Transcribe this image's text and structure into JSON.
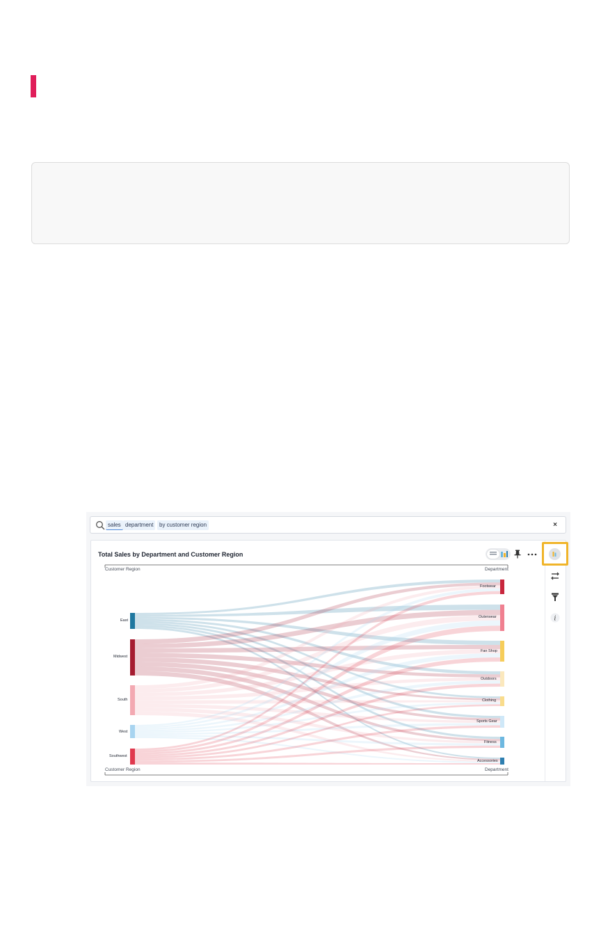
{
  "search": {
    "tokens": [
      "sales",
      "department",
      "by customer region"
    ],
    "clear_label": "×"
  },
  "chart_title": "Total Sales by Department and Customer Region",
  "colors": {
    "accent": "#e01e5a",
    "highlight": "#f0b429",
    "east": "#1f78a0",
    "midwest": "#a51c30",
    "south": "#f3a9b2",
    "west": "#a8d4f0",
    "southwest": "#e0394e",
    "footwear": "#c8273d",
    "outerwear": "#f08090",
    "fan_shop": "#f6cd5a",
    "outdoors": "#fbe8bd",
    "clothing": "#f9dc8c",
    "sports_gear": "#cfe8f8",
    "fitness": "#6db8e0",
    "accessories": "#2e7fb0"
  },
  "toolbar": {
    "icons": [
      "table-icon",
      "chart-icon",
      "pin-icon",
      "more-icon"
    ]
  },
  "sidebar": {
    "icons": [
      "chart-settings-icon",
      "configure-icon",
      "filter-icon",
      "info-icon"
    ]
  },
  "chart_data": {
    "type": "sankey",
    "title": "Total Sales by Department and Customer Region",
    "axis_top_left": "Customer Region",
    "axis_top_right": "Department",
    "axis_bottom_left": "Customer Region",
    "axis_bottom_right": "Department",
    "sources": [
      "East",
      "Midwest",
      "South",
      "West",
      "Southwest"
    ],
    "targets": [
      "Footwear",
      "Outerwear",
      "Fan Shop",
      "Outdoors",
      "Clothing",
      "Sports Gear",
      "Fitness",
      "Accessories"
    ]
  }
}
